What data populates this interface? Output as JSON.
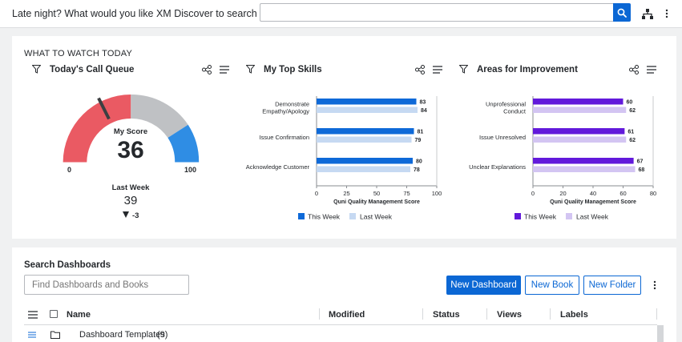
{
  "header": {
    "prompt": "Late night? What would you like XM Discover to search for tonight?",
    "search_value": "",
    "icons": [
      "search-icon",
      "hierarchy-icon",
      "more-vertical-icon"
    ]
  },
  "watch": {
    "section_title": "WHAT TO WATCH TODAY",
    "call_queue": {
      "title": "Today's Call Queue",
      "score_label": "My Score",
      "score": "36",
      "min": "0",
      "max": "100",
      "last_week_label": "Last Week",
      "last_week": "39",
      "delta": "-3",
      "colors": {
        "red": "#ea5a63",
        "gray": "#bfc1c4",
        "blue": "#2f8de4",
        "needle": "#3d3f42"
      }
    },
    "top_skills": {
      "title": "My Top Skills",
      "legend_this_week": "This Week",
      "legend_last_week": "Last Week",
      "axis_label": "Quni Quality Management Score",
      "colors": {
        "this_week": "#0e69d8",
        "last_week": "#c6d9f2"
      }
    },
    "improvement": {
      "title": "Areas for Improvement",
      "legend_this_week": "This Week",
      "legend_last_week": "Last Week",
      "axis_label": "Quni Quality Management Score",
      "colors": {
        "this_week": "#6219db",
        "last_week": "#d3c5f2"
      }
    }
  },
  "chart_data": [
    {
      "type": "bar",
      "orientation": "horizontal",
      "title": "My Top Skills",
      "categories": [
        [
          "Demonstrate",
          "Empathy/Apology"
        ],
        [
          "Issue Confirmation"
        ],
        [
          "Acknowledge Customer"
        ]
      ],
      "series": [
        {
          "name": "This Week",
          "values": [
            83,
            81,
            80
          ]
        },
        {
          "name": "Last Week",
          "values": [
            84,
            79,
            78
          ]
        }
      ],
      "xlabel": "Quni Quality Management Score",
      "xlim": [
        0,
        100
      ],
      "ticks": [
        0,
        25,
        50,
        75,
        100
      ],
      "legend": "bottom"
    },
    {
      "type": "bar",
      "orientation": "horizontal",
      "title": "Areas for Improvement",
      "categories": [
        [
          "Unprofessional",
          "Conduct"
        ],
        [
          "Issue Unresolved"
        ],
        [
          "Unclear Explanations"
        ]
      ],
      "series": [
        {
          "name": "This Week",
          "values": [
            60,
            61,
            67
          ]
        },
        {
          "name": "Last Week",
          "values": [
            62,
            62,
            68
          ]
        }
      ],
      "xlabel": "Quni Quality Management Score",
      "xlim": [
        0,
        80
      ],
      "ticks": [
        0,
        20,
        40,
        60,
        80
      ],
      "legend": "bottom"
    }
  ],
  "dashboards": {
    "title": "Search Dashboards",
    "find_placeholder": "Find Dashboards and Books",
    "new_dashboard": "New Dashboard",
    "new_book": "New Book",
    "new_folder": "New Folder",
    "columns": [
      "Name",
      "Modified",
      "Status",
      "Views",
      "Labels"
    ],
    "rows": [
      {
        "name": "Dashboard Templates",
        "count": "(9)"
      }
    ]
  }
}
